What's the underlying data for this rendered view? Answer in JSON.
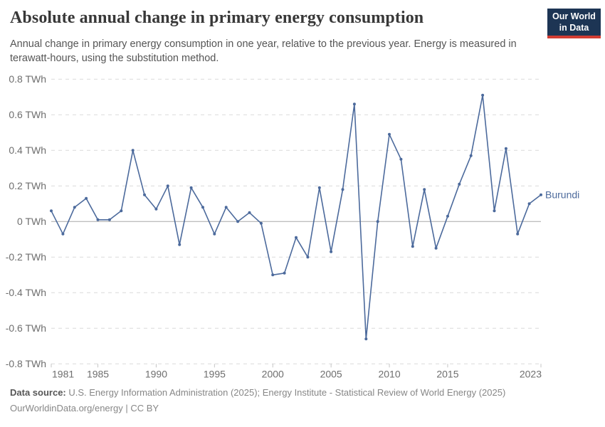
{
  "header": {
    "title": "Absolute annual change in primary energy consumption",
    "subtitle": "Annual change in primary energy consumption in one year, relative to the previous year. Energy is measured in terawatt-hours, using the substitution method.",
    "logo": {
      "line1": "Our World",
      "line2": "in Data"
    }
  },
  "chart_data": {
    "type": "line",
    "title": "Absolute annual change in primary energy consumption",
    "entity": "Burundi",
    "unit": "TWh",
    "x": [
      1981,
      1982,
      1983,
      1984,
      1985,
      1986,
      1987,
      1988,
      1989,
      1990,
      1991,
      1992,
      1993,
      1994,
      1995,
      1996,
      1997,
      1998,
      1999,
      2000,
      2001,
      2002,
      2003,
      2004,
      2005,
      2006,
      2007,
      2008,
      2009,
      2010,
      2011,
      2012,
      2013,
      2014,
      2015,
      2016,
      2017,
      2018,
      2019,
      2020,
      2021,
      2022,
      2023
    ],
    "values": [
      0.06,
      -0.07,
      0.08,
      0.13,
      0.01,
      0.01,
      0.06,
      0.4,
      0.15,
      0.07,
      0.2,
      -0.13,
      0.19,
      0.08,
      -0.07,
      0.08,
      0.0,
      0.05,
      -0.01,
      -0.3,
      -0.29,
      -0.09,
      -0.2,
      0.19,
      -0.17,
      0.18,
      0.66,
      -0.66,
      0.0,
      0.49,
      0.35,
      -0.14,
      0.18,
      -0.15,
      0.03,
      0.21,
      0.37,
      0.71,
      0.06,
      0.41,
      -0.07,
      0.1,
      0.15
    ],
    "xlim": [
      1981,
      2023
    ],
    "ylim": [
      -0.8,
      0.8
    ],
    "y_ticks": [
      0.8,
      0.6,
      0.4,
      0.2,
      0,
      -0.2,
      -0.4,
      -0.6,
      -0.8
    ],
    "y_tick_labels": [
      "0.8 TWh",
      "0.6 TWh",
      "0.4 TWh",
      "0.2 TWh",
      "0 TWh",
      "-0.2 TWh",
      "-0.4 TWh",
      "-0.6 TWh",
      "-0.8 TWh"
    ],
    "x_ticks": [
      1981,
      1985,
      1990,
      1995,
      2000,
      2005,
      2010,
      2015,
      2023
    ],
    "grid": "horizontal-dashed",
    "legend_position": "end-of-line",
    "series_label": "Burundi"
  },
  "colors": {
    "line": "#4c6a9c",
    "entity_label": "#4c6a9c",
    "gridline": "#dadada",
    "zero_line": "#a8a8a8",
    "axis_text": "#6e6e6e",
    "tick_mark": "#c4c4c4",
    "logo_bg": "#1d3554",
    "logo_accent": "#d23d33",
    "title_text": "#383838"
  },
  "footer": {
    "datasource_label": "Data source:",
    "datasource_text": " U.S. Energy Information Administration (2025); Energy Institute - Statistical Review of World Energy (2025)",
    "link": "OurWorldinData.org/energy",
    "license": " | CC BY"
  }
}
